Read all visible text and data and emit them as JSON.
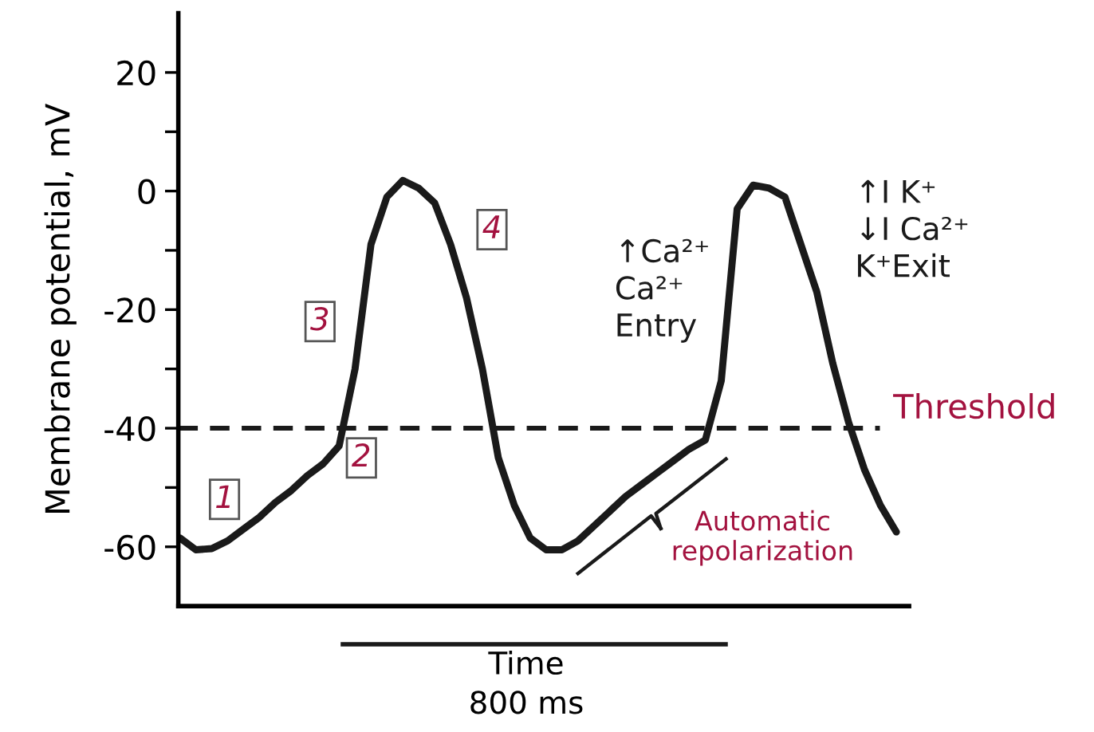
{
  "chart_data": {
    "type": "line",
    "ylabel": "Membrane potential, mV",
    "categories": [
      null,
      null,
      null,
      null,
      null,
      null,
      null,
      null,
      null,
      null,
      null,
      null,
      null,
      null,
      null,
      null,
      null,
      null,
      null,
      null,
      null,
      null,
      null,
      null,
      null,
      null,
      null,
      null,
      null,
      null,
      null,
      null,
      null,
      null,
      null,
      null,
      null,
      null,
      null,
      null,
      null,
      null,
      null,
      null,
      null,
      null
    ],
    "series": [
      {
        "color": "#1a1a1a",
        "values": [
          -58.5,
          -60.5,
          -60.3,
          -59,
          -57,
          -55,
          -52.5,
          -50.5,
          -48,
          -46,
          -43,
          -30,
          -9,
          -1,
          1.8,
          0.5,
          -2,
          -9,
          -18,
          -30,
          -45,
          -53,
          -58.5,
          -60.5,
          -60.5,
          -59,
          -56.5,
          -54,
          -51.5,
          -49.5,
          -47.5,
          -45.5,
          -43.5,
          -42,
          -32,
          -3,
          1,
          0.5,
          -1,
          -9,
          -17,
          -29,
          -39,
          -47,
          -53,
          -57.5
        ]
      }
    ],
    "ylim": [
      -70,
      30
    ],
    "yticks": [
      -60,
      {
        "value": -50,
        "label": null
      },
      -40,
      {
        "value": -30,
        "label": null
      },
      -20,
      {
        "value": -10,
        "label": null
      },
      0,
      {
        "value": 10,
        "label": null
      },
      20
    ],
    "ref_lines": [
      {
        "axis": "y",
        "value": -40,
        "label": "Threshold",
        "color": "#1a1a1a",
        "line_style": "dashed"
      }
    ],
    "annotations": [
      "1",
      "2",
      "3",
      "4",
      "↑Ca²⁺\nCa²⁺\nEntry",
      "↑I K⁺\n↓I Ca²⁺\nK⁺Exit",
      "Automatic\nrepolarization",
      "Time\n800 ms"
    ],
    "grid": false,
    "legend": false,
    "marker": "none",
    "line_style": "solid"
  }
}
